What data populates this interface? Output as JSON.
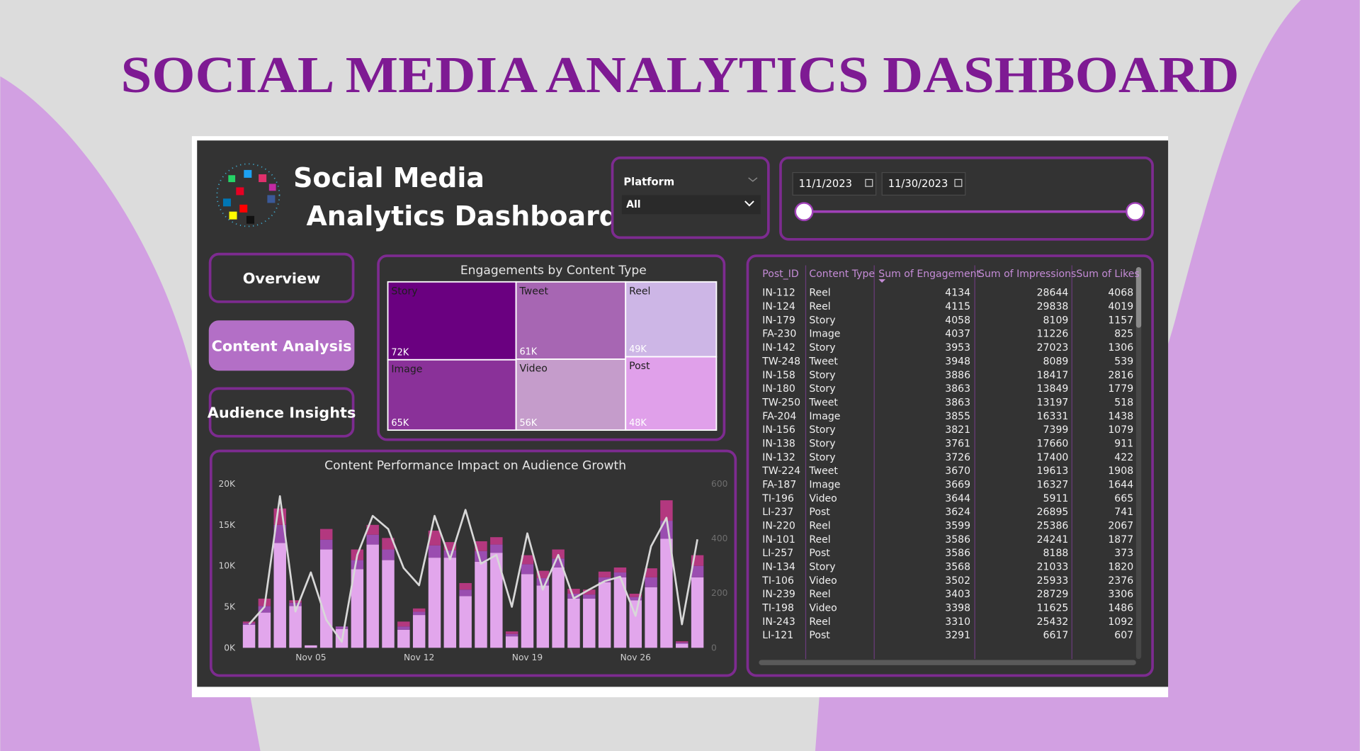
{
  "page_title": "SOCIAL MEDIA ANALYTICS DASHBOARD",
  "header": {
    "title_lines": [
      "Social Media",
      "Analytics Dashboard"
    ]
  },
  "platform_slicer": {
    "label": "Platform",
    "selected": "All"
  },
  "date_slicer": {
    "start": "11/1/2023",
    "end": "11/30/2023"
  },
  "nav": [
    {
      "label": "Overview",
      "active": false
    },
    {
      "label": "Content Analysis",
      "active": true
    },
    {
      "label": "Audience Insights",
      "active": false
    }
  ],
  "chart_data": [
    {
      "type": "treemap",
      "title": "Engagements by Content Type",
      "categories": [
        "Story",
        "Image",
        "Tweet",
        "Video",
        "Reel",
        "Post"
      ],
      "values": [
        72000,
        65000,
        61000,
        56000,
        49000,
        48000
      ],
      "value_labels": [
        "72K",
        "65K",
        "61K",
        "56K",
        "49K",
        "48K"
      ],
      "colors": [
        "#6a0080",
        "#8a3199",
        "#a766b3",
        "#c59ccb",
        "#cdb6e6",
        "#e0a0ea"
      ]
    },
    {
      "type": "combo",
      "title": "Content Performance Impact on Audience Growth",
      "categories": [
        null,
        null,
        null,
        null,
        "Nov 05",
        null,
        null,
        null,
        null,
        null,
        null,
        "Nov 12",
        null,
        null,
        null,
        null,
        null,
        null,
        "Nov 19",
        null,
        null,
        null,
        null,
        null,
        null,
        "Nov 26",
        null,
        null,
        null,
        null
      ],
      "series": [
        {
          "type": "bar",
          "color": "#e2a6ec",
          "values": [
            2800,
            4300,
            12800,
            5100,
            300,
            12000,
            2300,
            9600,
            12600,
            10700,
            2200,
            4000,
            11000,
            11000,
            6300,
            10500,
            11600,
            1400,
            9000,
            7600,
            9800,
            6000,
            6000,
            8000,
            8600,
            5800,
            7400,
            13300,
            500,
            8600
          ]
        },
        {
          "type": "bar",
          "color": "#9a4db0",
          "values": [
            200,
            800,
            2200,
            400,
            0,
            1200,
            300,
            1100,
            1200,
            1300,
            400,
            400,
            1500,
            900,
            800,
            1300,
            1000,
            300,
            1200,
            900,
            1100,
            600,
            500,
            600,
            600,
            400,
            1200,
            2200,
            150,
            1400
          ]
        },
        {
          "type": "bar",
          "color": "#b3387f",
          "values": [
            200,
            900,
            2000,
            300,
            0,
            1300,
            0,
            1300,
            1200,
            1400,
            600,
            400,
            1800,
            1000,
            800,
            1200,
            900,
            300,
            1100,
            900,
            1100,
            600,
            600,
            700,
            600,
            400,
            1100,
            2500,
            150,
            1300
          ]
        },
        {
          "type": "line",
          "axis": "y2",
          "color": "#d8d8d8",
          "values": [
            86,
            150,
            555,
            133,
            276,
            102,
            22,
            340,
            483,
            435,
            292,
            229,
            483,
            324,
            505,
            308,
            340,
            150,
            419,
            213,
            340,
            181,
            213,
            244,
            260,
            117,
            371,
            476,
            86,
            397
          ]
        }
      ],
      "ylim": [
        0,
        20000
      ],
      "yticks": [
        {
          "value": 0,
          "label": "0K"
        },
        {
          "value": 5000,
          "label": "5K"
        },
        {
          "value": 10000,
          "label": "10K"
        },
        {
          "value": 15000,
          "label": "15K"
        },
        {
          "value": 20000,
          "label": "20K"
        }
      ],
      "y2lim": [
        0,
        600
      ],
      "y2ticks": [
        0,
        200,
        400,
        600
      ]
    }
  ],
  "table": {
    "columns": [
      "Post_ID",
      "Content Type",
      "Sum of Engagement",
      "Sum of Impressions",
      "Sum of Likes"
    ],
    "rows": [
      [
        "IN-112",
        "Reel",
        4134,
        28644,
        4068
      ],
      [
        "IN-124",
        "Reel",
        4115,
        29838,
        4019
      ],
      [
        "IN-179",
        "Story",
        4058,
        8109,
        1157
      ],
      [
        "FA-230",
        "Image",
        4037,
        11226,
        825
      ],
      [
        "IN-142",
        "Story",
        3953,
        27023,
        1306
      ],
      [
        "TW-248",
        "Tweet",
        3948,
        8089,
        539
      ],
      [
        "IN-158",
        "Story",
        3886,
        18417,
        2816
      ],
      [
        "IN-180",
        "Story",
        3863,
        13849,
        1779
      ],
      [
        "TW-250",
        "Tweet",
        3863,
        13197,
        518
      ],
      [
        "FA-204",
        "Image",
        3855,
        16331,
        1438
      ],
      [
        "IN-156",
        "Story",
        3821,
        7399,
        1079
      ],
      [
        "IN-138",
        "Story",
        3761,
        17660,
        911
      ],
      [
        "IN-132",
        "Story",
        3726,
        17400,
        422
      ],
      [
        "TW-224",
        "Tweet",
        3670,
        19613,
        1908
      ],
      [
        "FA-187",
        "Image",
        3669,
        16327,
        1644
      ],
      [
        "TI-196",
        "Video",
        3644,
        5911,
        665
      ],
      [
        "LI-237",
        "Post",
        3624,
        26895,
        741
      ],
      [
        "IN-220",
        "Reel",
        3599,
        25386,
        2067
      ],
      [
        "IN-101",
        "Reel",
        3586,
        24241,
        1877
      ],
      [
        "LI-257",
        "Post",
        3586,
        8188,
        373
      ],
      [
        "IN-134",
        "Story",
        3568,
        21033,
        1820
      ],
      [
        "TI-106",
        "Video",
        3502,
        25933,
        2376
      ],
      [
        "IN-239",
        "Reel",
        3403,
        28729,
        3306
      ],
      [
        "TI-198",
        "Video",
        3398,
        11625,
        1486
      ],
      [
        "IN-243",
        "Reel",
        3310,
        25432,
        1092
      ],
      [
        "LI-121",
        "Post",
        3291,
        6617,
        607
      ]
    ]
  }
}
